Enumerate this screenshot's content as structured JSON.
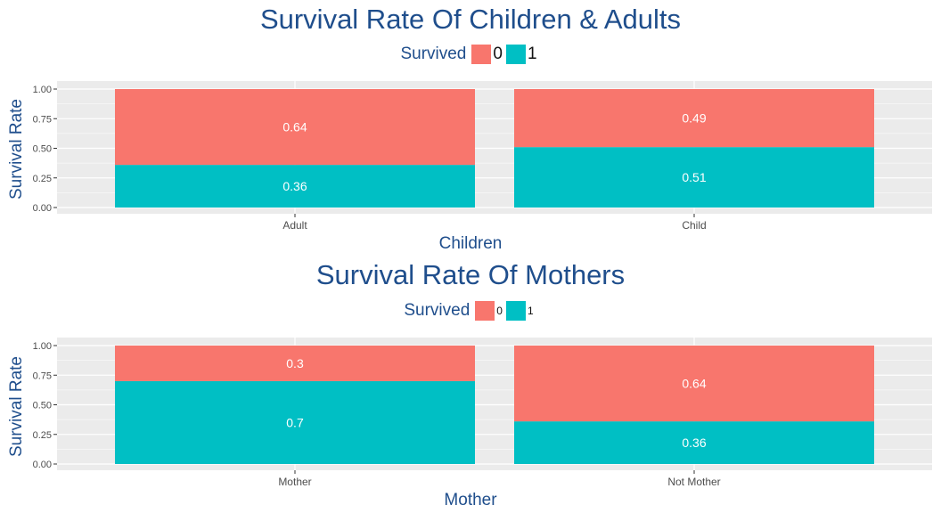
{
  "colors": {
    "died": "#F8766D",
    "survived": "#00BFC4",
    "panel_bg": "#EBEBEB",
    "grid": "#FFFFFF",
    "title": "#1F4E8C"
  },
  "chart_data": [
    {
      "type": "bar",
      "stacked": true,
      "title": "Survival Rate Of Children & Adults",
      "xlabel": "Children",
      "ylabel": "Survival Rate",
      "ylim": [
        0,
        1
      ],
      "yticks": [
        "0.00",
        "0.25",
        "0.50",
        "0.75",
        "1.00"
      ],
      "legend": {
        "title": "Survived",
        "position": "top",
        "entries": [
          "0",
          "1"
        ]
      },
      "categories": [
        "Adult",
        "Child"
      ],
      "series": [
        {
          "name": "0",
          "values": [
            0.64,
            0.49
          ],
          "labels": [
            "0.64",
            "0.49"
          ]
        },
        {
          "name": "1",
          "values": [
            0.36,
            0.51
          ],
          "labels": [
            "0.36",
            "0.51"
          ]
        }
      ]
    },
    {
      "type": "bar",
      "stacked": true,
      "title": "Survival Rate Of Mothers",
      "xlabel": "Mother",
      "ylabel": "Survival Rate",
      "ylim": [
        0,
        1
      ],
      "yticks": [
        "0.00",
        "0.25",
        "0.50",
        "0.75",
        "1.00"
      ],
      "legend": {
        "title": "Survived",
        "position": "top",
        "entries": [
          "0",
          "1"
        ]
      },
      "categories": [
        "Mother",
        "Not Mother"
      ],
      "series": [
        {
          "name": "0",
          "values": [
            0.3,
            0.64
          ],
          "labels": [
            "0.3",
            "0.64"
          ]
        },
        {
          "name": "1",
          "values": [
            0.7,
            0.36
          ],
          "labels": [
            "0.7",
            "0.36"
          ]
        }
      ]
    }
  ]
}
